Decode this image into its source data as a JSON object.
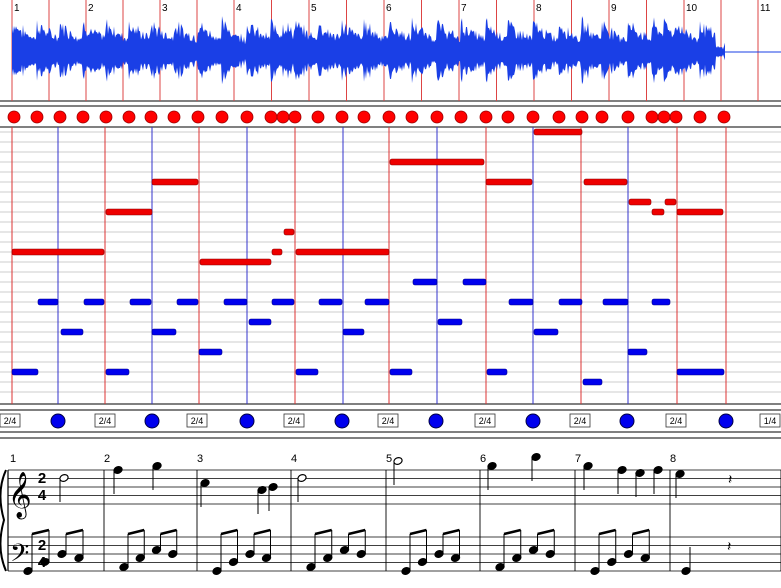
{
  "ruler": {
    "measures": [
      "1",
      "2",
      "3",
      "4",
      "5",
      "6",
      "7",
      "8",
      "9",
      "10",
      "11"
    ]
  },
  "beat_row": {
    "labels": [
      "2/4",
      "2/4",
      "2/4",
      "2/4",
      "2/4",
      "2/4",
      "2/4",
      "2/4",
      "1/4"
    ]
  },
  "score": {
    "time_signature": {
      "top": "2",
      "bottom": "4"
    },
    "measure_numbers": [
      "1",
      "2",
      "3",
      "4",
      "5",
      "6",
      "7",
      "8"
    ]
  }
}
